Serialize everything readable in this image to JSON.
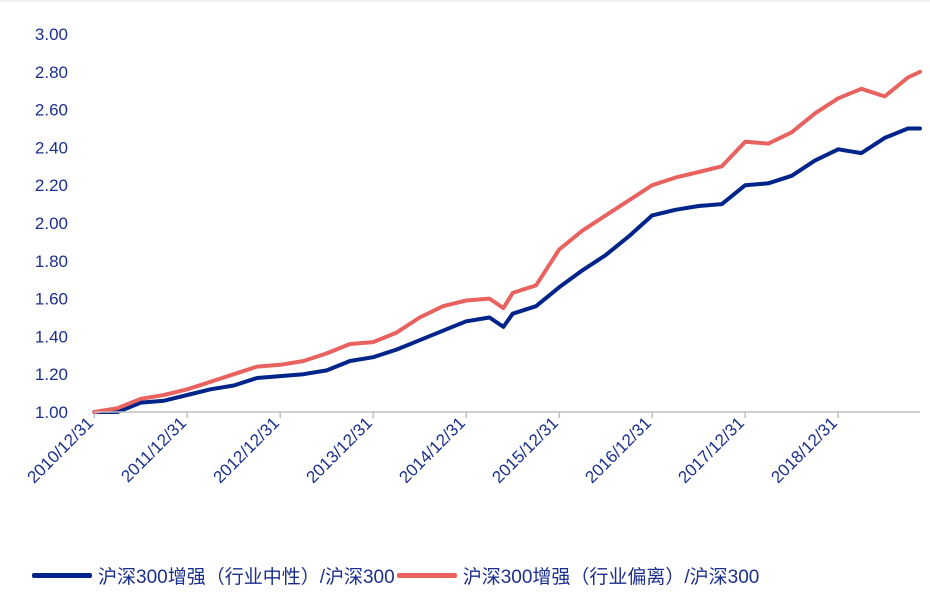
{
  "chart_data": {
    "type": "line",
    "title": "",
    "xlabel": "",
    "ylabel": "",
    "x_ticks": [
      "2010/12/31",
      "2011/12/31",
      "2012/12/31",
      "2013/12/31",
      "2014/12/31",
      "2015/12/31",
      "2016/12/31",
      "2017/12/31",
      "2018/12/31"
    ],
    "y_ticks": [
      "1.00",
      "1.20",
      "1.40",
      "1.60",
      "1.80",
      "2.00",
      "2.20",
      "2.40",
      "2.60",
      "2.80",
      "3.00"
    ],
    "ylim": [
      1.0,
      3.0
    ],
    "xlim": [
      2010.997,
      2019.88
    ],
    "grid": false,
    "legend_position": "bottom",
    "x": [
      2011.0,
      2011.25,
      2011.5,
      2011.75,
      2012.0,
      2012.25,
      2012.5,
      2012.75,
      2013.0,
      2013.25,
      2013.5,
      2013.75,
      2014.0,
      2014.25,
      2014.5,
      2014.75,
      2015.0,
      2015.25,
      2015.4,
      2015.5,
      2015.75,
      2016.0,
      2016.25,
      2016.5,
      2016.75,
      2017.0,
      2017.25,
      2017.5,
      2017.75,
      2018.0,
      2018.25,
      2018.5,
      2018.75,
      2019.0,
      2019.25,
      2019.5,
      2019.75,
      2019.88
    ],
    "series": [
      {
        "name": "沪深300增强（行业中性）/沪深300",
        "color": "#00248a",
        "values": [
          1.0,
          1.0,
          1.05,
          1.06,
          1.09,
          1.12,
          1.14,
          1.18,
          1.19,
          1.2,
          1.22,
          1.27,
          1.29,
          1.33,
          1.38,
          1.43,
          1.48,
          1.5,
          1.45,
          1.52,
          1.56,
          1.66,
          1.75,
          1.83,
          1.93,
          2.04,
          2.07,
          2.09,
          2.1,
          2.2,
          2.21,
          2.25,
          2.33,
          2.39,
          2.37,
          2.45,
          2.5,
          2.5
        ]
      },
      {
        "name": "沪深300增强（行业偏离）/沪深300",
        "color": "#e8625f",
        "values": [
          1.0,
          1.02,
          1.07,
          1.09,
          1.12,
          1.16,
          1.2,
          1.24,
          1.25,
          1.27,
          1.31,
          1.36,
          1.37,
          1.42,
          1.5,
          1.56,
          1.59,
          1.6,
          1.55,
          1.63,
          1.67,
          1.86,
          1.96,
          2.04,
          2.12,
          2.2,
          2.24,
          2.27,
          2.3,
          2.43,
          2.42,
          2.48,
          2.58,
          2.66,
          2.71,
          2.67,
          2.77,
          2.8
        ]
      }
    ]
  },
  "colors": {
    "axis": "#bfbfbf",
    "tick_text": "#1b2f8f"
  }
}
